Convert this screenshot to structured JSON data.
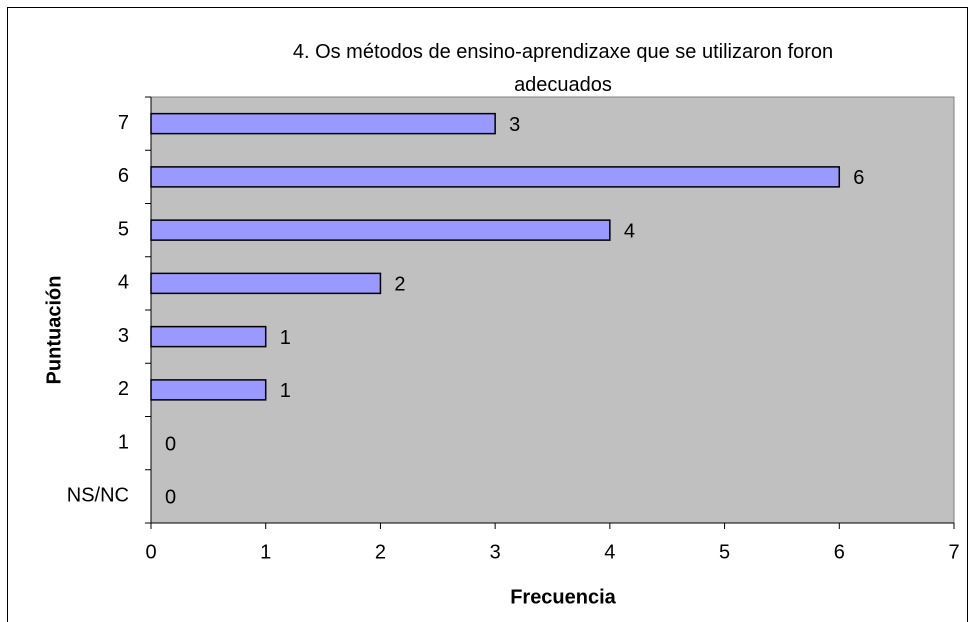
{
  "chart_data": {
    "type": "bar",
    "orientation": "horizontal",
    "title": "4. Os métodos de ensino-aprendizaxe que se utilizaron foron adecuados",
    "xlabel": "Frecuencia",
    "ylabel": "Puntuación",
    "categories": [
      "NS/NC",
      "1",
      "2",
      "3",
      "4",
      "5",
      "6",
      "7"
    ],
    "values": [
      0,
      0,
      1,
      1,
      2,
      4,
      6,
      3
    ],
    "color": "#9999ff",
    "plot_background": "#c0c0c0",
    "xlim": [
      0,
      7
    ],
    "xticks": [
      0,
      1,
      2,
      3,
      4,
      5,
      6,
      7
    ]
  }
}
